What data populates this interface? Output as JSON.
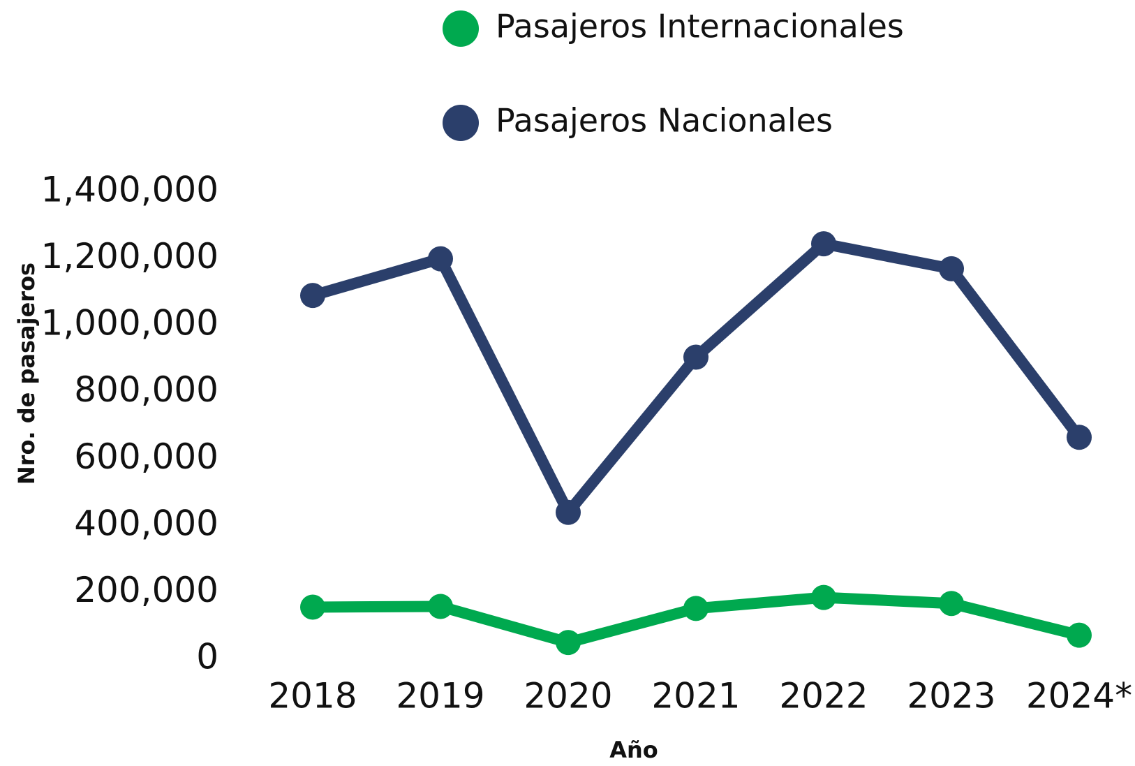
{
  "chart_data": {
    "type": "line",
    "x_label": "Año",
    "y_label": "Nro. de pasajeros",
    "categories": [
      "2018",
      "2019",
      "2020",
      "2021",
      "2022",
      "2023",
      "2024*"
    ],
    "series": [
      {
        "name": "Pasajeros Internacionales",
        "color": "#00a94f",
        "values": [
          156000,
          158000,
          50000,
          152000,
          185000,
          167000,
          72000
        ]
      },
      {
        "name": "Pasajeros Nacionales",
        "color": "#2b3f6b",
        "values": [
          1090000,
          1200000,
          440000,
          905000,
          1245000,
          1170000,
          665000
        ]
      }
    ],
    "ylim": [
      0,
      1400000
    ],
    "yticks": [
      0,
      {
        "value": 200000,
        "label": "200,000"
      },
      {
        "value": 400000,
        "label": "400,000"
      },
      {
        "value": 600000,
        "label": "600,000"
      },
      {
        "value": 800000,
        "label": "800,000"
      },
      {
        "value": 1000000,
        "label": "1,000,000"
      },
      {
        "value": 1200000,
        "label": "1,200,000"
      },
      {
        "value": 1400000,
        "label": "1,400,000"
      }
    ],
    "grid": false,
    "legend": "top"
  }
}
